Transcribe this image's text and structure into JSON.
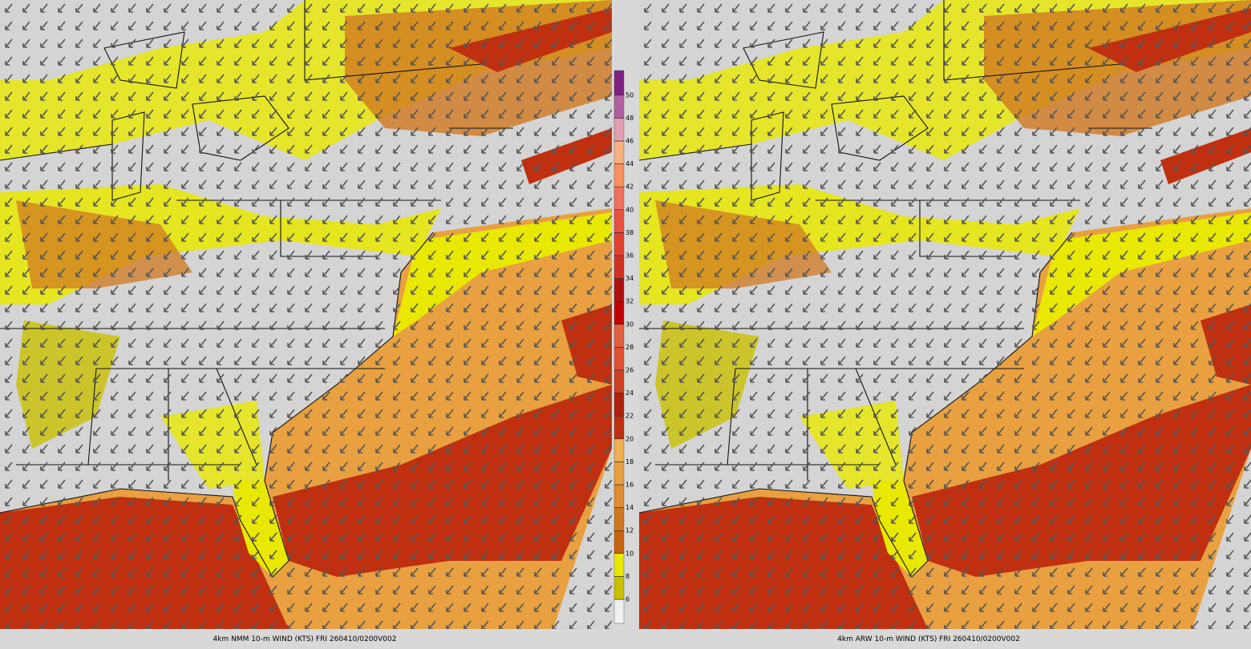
{
  "panels": [
    {
      "caption": "4km NMM 10-m WIND (KTS) FRI 260410/0200V002"
    },
    {
      "caption": "4km ARW 10-m WIND (KTS) FRI 260410/0200V002"
    }
  ],
  "colorbar": {
    "labels": [
      6,
      8,
      10,
      12,
      14,
      16,
      18,
      20,
      22,
      24,
      26,
      28,
      30,
      32,
      34,
      36,
      38,
      40,
      42,
      44,
      46,
      48,
      50
    ],
    "bands": [
      "#f0f0f0",
      "#c8c000",
      "#e8e800",
      "#c86410",
      "#d07820",
      "#e08c30",
      "#e8a040",
      "#f0b050",
      "#c03010",
      "#b02010",
      "#d04020",
      "#e05030",
      "#e06040",
      "#c00000",
      "#b01010",
      "#d03020",
      "#e04030",
      "#e85040",
      "#f07060",
      "#f89060",
      "#f8b080",
      "#e0a0b0",
      "#b060a0",
      "#802080"
    ]
  }
}
